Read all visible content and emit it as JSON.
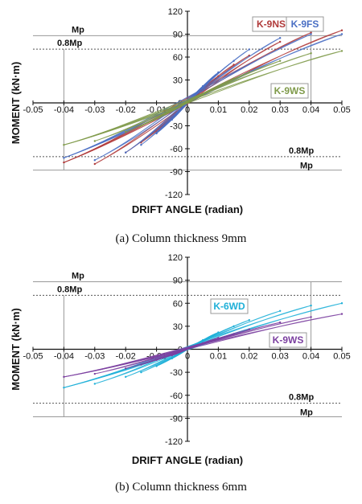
{
  "chart_data": [
    {
      "type": "line",
      "caption": "(a) Column thickness 9mm",
      "xlabel": "DRIFT ANGLE (radian)",
      "ylabel": "MOMENT (kN·m)",
      "xlim": [
        -0.05,
        0.05
      ],
      "ylim": [
        -120,
        120
      ],
      "xticks": [
        "-0.05",
        "-0.04",
        "-0.03",
        "-0.02",
        "-0.01",
        "0",
        "0.01",
        "0.02",
        "0.03",
        "0.04",
        "0.05"
      ],
      "yticks": [
        "120",
        "90",
        "60",
        "30",
        "0",
        "-30",
        "-60",
        "-90",
        "-120"
      ],
      "reference_lines": [
        {
          "label": "Mp",
          "value": 88,
          "style": "solid"
        },
        {
          "label": "0.8Mp",
          "value": 70.4,
          "style": "dashed"
        },
        {
          "label": "0.8Mp",
          "value": -70.4,
          "style": "dashed"
        },
        {
          "label": "Mp",
          "value": -88,
          "style": "solid"
        }
      ],
      "series": [
        {
          "name": "K-9NS",
          "color": "#b03a3a",
          "peaks": [
            [
              0.005,
              18
            ],
            [
              0.01,
              35
            ],
            [
              0.015,
              50
            ],
            [
              0.02,
              62
            ],
            [
              0.03,
              80
            ],
            [
              0.04,
              92
            ],
            [
              0.05,
              95
            ]
          ],
          "valleys": [
            [
              -0.005,
              -20
            ],
            [
              -0.01,
              -38
            ],
            [
              -0.015,
              -52
            ],
            [
              -0.02,
              -65
            ],
            [
              -0.03,
              -80
            ],
            [
              -0.04,
              -78
            ]
          ]
        },
        {
          "name": "K-9FS",
          "color": "#4a6fc4",
          "peaks": [
            [
              0.005,
              22
            ],
            [
              0.01,
              40
            ],
            [
              0.015,
              55
            ],
            [
              0.02,
              70
            ],
            [
              0.03,
              85
            ],
            [
              0.04,
              90
            ],
            [
              0.05,
              90
            ]
          ],
          "valleys": [
            [
              -0.005,
              -22
            ],
            [
              -0.01,
              -40
            ],
            [
              -0.015,
              -55
            ],
            [
              -0.02,
              -65
            ],
            [
              -0.03,
              -75
            ],
            [
              -0.04,
              -72
            ]
          ]
        },
        {
          "name": "K-9WS",
          "color": "#7f9a4a",
          "peaks": [
            [
              0.005,
              10
            ],
            [
              0.01,
              22
            ],
            [
              0.015,
              32
            ],
            [
              0.02,
              40
            ],
            [
              0.03,
              55
            ],
            [
              0.04,
              65
            ],
            [
              0.05,
              68
            ]
          ],
          "valleys": [
            [
              -0.005,
              -10
            ],
            [
              -0.01,
              -20
            ],
            [
              -0.015,
              -30
            ],
            [
              -0.02,
              -38
            ],
            [
              -0.03,
              -50
            ],
            [
              -0.04,
              -55
            ]
          ]
        }
      ]
    },
    {
      "type": "line",
      "caption": "(b) Column thickness 6mm",
      "xlabel": "DRIFT ANGLE (radian)",
      "ylabel": "MOMENT (kN·m)",
      "xlim": [
        -0.05,
        0.05
      ],
      "ylim": [
        -120,
        120
      ],
      "xticks": [
        "-0.05",
        "-0.04",
        "-0.03",
        "-0.02",
        "-0.01",
        "0",
        "0.01",
        "0.02",
        "0.03",
        "0.04",
        "0.05"
      ],
      "yticks": [
        "120",
        "90",
        "60",
        "30",
        "0",
        "-30",
        "-60",
        "-90",
        "-120"
      ],
      "reference_lines": [
        {
          "label": "Mp",
          "value": 88,
          "style": "solid"
        },
        {
          "label": "0.8Mp",
          "value": 70.4,
          "style": "dashed"
        },
        {
          "label": "0.8Mp",
          "value": -70.4,
          "style": "dashed"
        },
        {
          "label": "Mp",
          "value": -88,
          "style": "solid"
        }
      ],
      "series": [
        {
          "name": "K-6WD",
          "color": "#1fb0d8",
          "peaks": [
            [
              0.005,
              12
            ],
            [
              0.01,
              22
            ],
            [
              0.015,
              30
            ],
            [
              0.02,
              38
            ],
            [
              0.03,
              50
            ],
            [
              0.04,
              57
            ],
            [
              0.05,
              60
            ]
          ],
          "valleys": [
            [
              -0.005,
              -12
            ],
            [
              -0.01,
              -22
            ],
            [
              -0.015,
              -30
            ],
            [
              -0.02,
              -36
            ],
            [
              -0.03,
              -45
            ],
            [
              -0.04,
              -50
            ]
          ]
        },
        {
          "name": "K-9WS",
          "color": "#7b3fa0",
          "peaks": [
            [
              0.005,
              8
            ],
            [
              0.01,
              15
            ],
            [
              0.015,
              20
            ],
            [
              0.02,
              26
            ],
            [
              0.03,
              35
            ],
            [
              0.04,
              42
            ],
            [
              0.05,
              46
            ]
          ],
          "valleys": [
            [
              -0.005,
              -8
            ],
            [
              -0.01,
              -14
            ],
            [
              -0.015,
              -20
            ],
            [
              -0.02,
              -25
            ],
            [
              -0.03,
              -32
            ],
            [
              -0.04,
              -36
            ]
          ]
        }
      ]
    }
  ]
}
